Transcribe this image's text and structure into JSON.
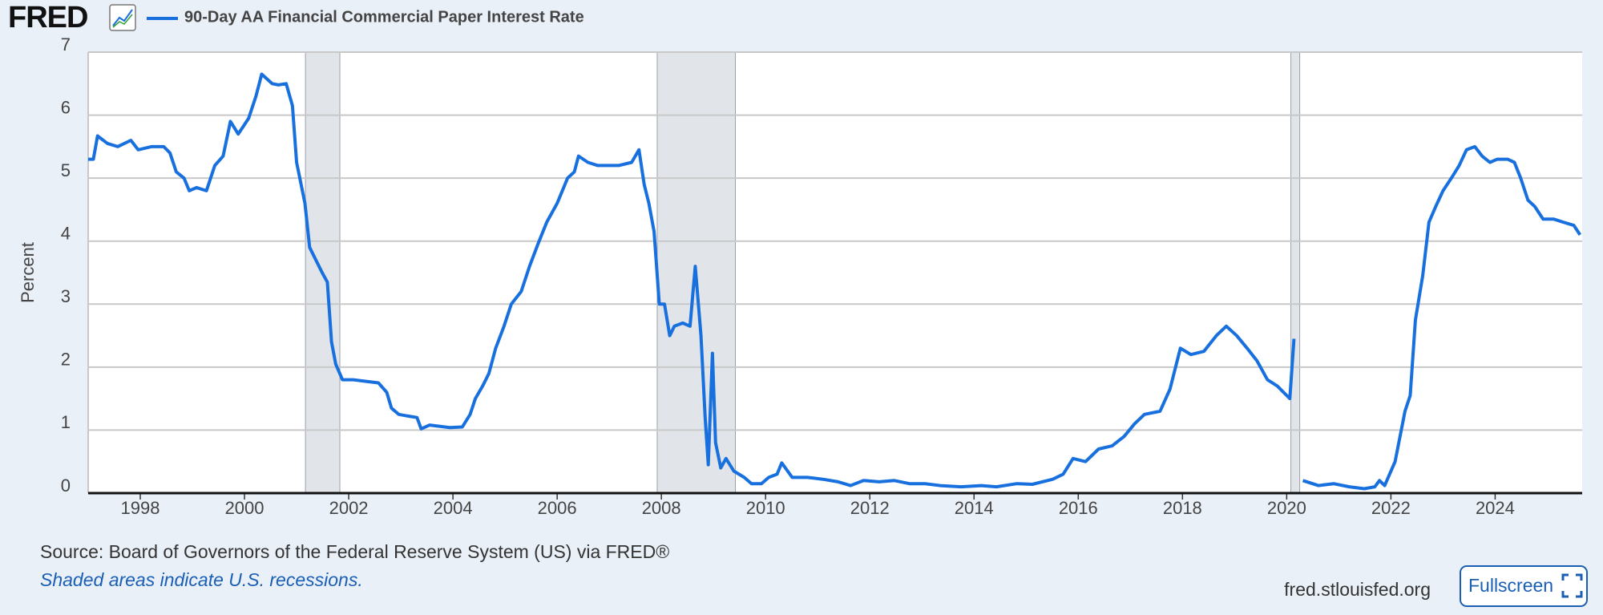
{
  "logo": "FRED",
  "chart_data": {
    "type": "line",
    "y_label": "Percent",
    "x": [
      1997.0,
      1997.1,
      1997.18,
      1997.37,
      1997.57,
      1997.82,
      1997.96,
      1998.22,
      1998.45,
      1998.57,
      1998.69,
      1998.84,
      1998.94,
      1999.08,
      1999.27,
      1999.43,
      1999.59,
      1999.73,
      1999.88,
      2000.08,
      2000.22,
      2000.33,
      2000.53,
      2000.65,
      2000.8,
      2000.92,
      2001.0,
      2001.16,
      2001.25,
      2001.49,
      2001.59,
      2001.67,
      2001.75,
      2001.88,
      2002.08,
      2002.27,
      2002.57,
      2002.73,
      2002.82,
      2002.96,
      2003.16,
      2003.31,
      2003.39,
      2003.55,
      2003.75,
      2003.94,
      2004.18,
      2004.33,
      2004.43,
      2004.57,
      2004.69,
      2004.82,
      2004.98,
      2005.12,
      2005.31,
      2005.47,
      2005.63,
      2005.8,
      2006.0,
      2006.2,
      2006.33,
      2006.41,
      2006.59,
      2006.78,
      2006.98,
      2007.18,
      2007.43,
      2007.57,
      2007.67,
      2007.76,
      2007.86,
      2007.96,
      2008.06,
      2008.16,
      2008.25,
      2008.41,
      2008.55,
      2008.65,
      2008.76,
      2008.84,
      2008.9,
      2008.98,
      2009.04,
      2009.14,
      2009.24,
      2009.39,
      2009.59,
      2009.73,
      2009.92,
      2010.06,
      2010.22,
      2010.31,
      2010.51,
      2010.8,
      2011.1,
      2011.39,
      2011.63,
      2011.88,
      2012.18,
      2012.47,
      2012.76,
      2013.06,
      2013.35,
      2013.75,
      2014.14,
      2014.43,
      2014.82,
      2015.12,
      2015.51,
      2015.71,
      2015.9,
      2016.14,
      2016.39,
      2016.65,
      2016.88,
      2017.08,
      2017.27,
      2017.57,
      2017.76,
      2017.96,
      2018.16,
      2018.41,
      2018.65,
      2018.84,
      2019.04,
      2019.24,
      2019.43,
      2019.63,
      2019.82,
      2020.06,
      2020.14,
      2020.22,
      2020.31,
      2020.61,
      2020.9,
      2021.2,
      2021.49,
      2021.69,
      2021.78,
      2021.88,
      2022.08,
      2022.27,
      2022.37,
      2022.47,
      2022.61,
      2022.73,
      2022.86,
      2023.0,
      2023.16,
      2023.31,
      2023.45,
      2023.61,
      2023.75,
      2023.9,
      2024.04,
      2024.24,
      2024.37,
      2024.49,
      2024.63,
      2024.76,
      2024.92,
      2025.12,
      2025.31,
      2025.51,
      2025.63
    ],
    "series": [
      {
        "name": "90-Day AA Financial Commercial Paper Interest Rate",
        "color": "#1870de",
        "values": [
          5.3,
          5.3,
          5.67,
          5.55,
          5.5,
          5.6,
          5.45,
          5.5,
          5.5,
          5.4,
          5.1,
          5.0,
          4.8,
          4.85,
          4.8,
          5.2,
          5.35,
          5.9,
          5.7,
          5.95,
          6.3,
          6.65,
          6.5,
          6.48,
          6.5,
          6.15,
          5.25,
          4.6,
          3.9,
          3.5,
          3.35,
          2.4,
          2.05,
          1.8,
          1.8,
          1.78,
          1.75,
          1.6,
          1.35,
          1.25,
          1.22,
          1.2,
          1.02,
          1.08,
          1.06,
          1.04,
          1.05,
          1.25,
          1.5,
          1.7,
          1.9,
          2.3,
          2.65,
          3.0,
          3.2,
          3.6,
          3.95,
          4.3,
          4.6,
          5.0,
          5.1,
          5.35,
          5.25,
          5.2,
          5.2,
          5.2,
          5.25,
          5.45,
          4.9,
          4.6,
          4.15,
          3.0,
          3.0,
          2.5,
          2.65,
          2.7,
          2.65,
          3.6,
          2.5,
          1.2,
          0.45,
          2.22,
          0.8,
          0.4,
          0.55,
          0.35,
          0.25,
          0.15,
          0.15,
          0.25,
          0.3,
          0.48,
          0.25,
          0.25,
          0.22,
          0.18,
          0.12,
          0.2,
          0.18,
          0.2,
          0.15,
          0.15,
          0.12,
          0.1,
          0.12,
          0.1,
          0.15,
          0.14,
          0.22,
          0.3,
          0.55,
          0.5,
          0.7,
          0.75,
          0.9,
          1.1,
          1.25,
          1.3,
          1.65,
          2.3,
          2.2,
          2.25,
          2.5,
          2.65,
          2.5,
          2.3,
          2.1,
          1.8,
          1.7,
          1.5,
          2.45,
          null,
          0.2,
          0.12,
          0.15,
          0.1,
          0.07,
          0.1,
          0.2,
          0.12,
          0.5,
          1.3,
          1.55,
          2.75,
          3.45,
          4.3,
          4.55,
          4.8,
          5.0,
          5.2,
          5.45,
          5.5,
          5.35,
          5.25,
          5.3,
          5.3,
          5.25,
          5.0,
          4.65,
          4.55,
          4.35,
          4.35,
          4.3,
          4.25,
          4.1
        ]
      }
    ],
    "xlim": [
      1997.0,
      2025.67
    ],
    "ylim": [
      0,
      7
    ],
    "xticks": [
      1998,
      2000,
      2002,
      2004,
      2006,
      2008,
      2010,
      2012,
      2014,
      2016,
      2018,
      2020,
      2022,
      2024
    ],
    "yticks": [
      0,
      1,
      2,
      3,
      4,
      5,
      6,
      7
    ],
    "grid": true,
    "recessions": [
      [
        2001.17,
        2001.83
      ],
      [
        2007.92,
        2009.42
      ],
      [
        2020.08,
        2020.25
      ]
    ],
    "recession_color": "#e1e5ea"
  },
  "source": "Source: Board of Governors of the Federal Reserve System (US) via FRED®",
  "note": "Shaded areas indicate U.S. recessions.",
  "site": "fred.stlouisfed.org",
  "button": "Fullscreen"
}
